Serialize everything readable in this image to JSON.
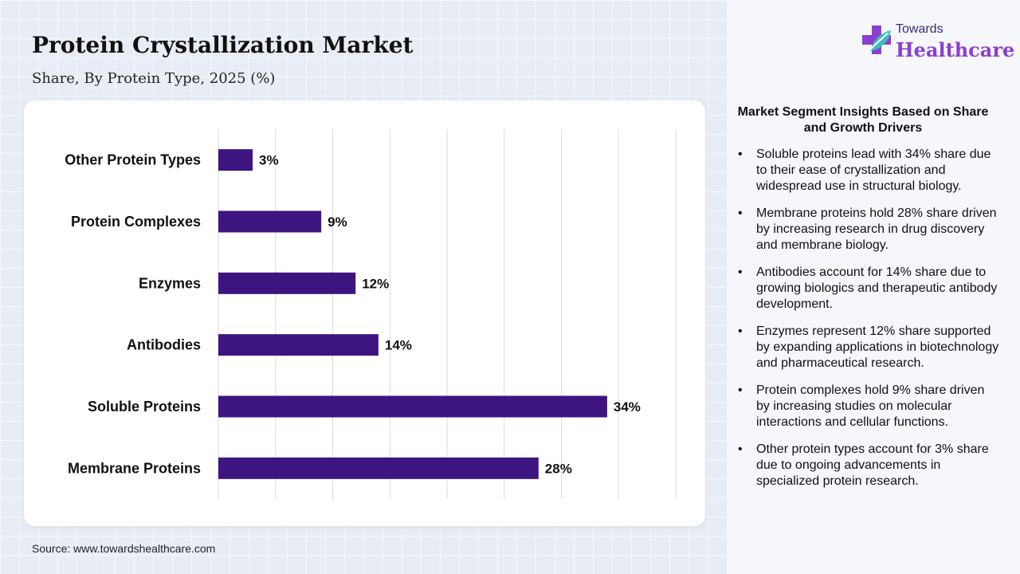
{
  "header": {
    "title": "Protein Crystallization Market",
    "subtitle": "Share, By Protein Type, 2025 (%)"
  },
  "brand": {
    "line1": "Towards",
    "line2": "Healthcare",
    "icon": "medical-cross-leaf-icon"
  },
  "colors": {
    "bar": "#3e1480",
    "grid": "#d9d9e3",
    "brand_purple": "#8a3fd0",
    "brand_teal": "#37c7b6"
  },
  "chart_data": {
    "type": "bar",
    "orientation": "horizontal",
    "categories": [
      "Other Protein Types",
      "Protein Complexes",
      "Enzymes",
      "Antibodies",
      "Soluble Proteins",
      "Membrane Proteins"
    ],
    "values": [
      3,
      9,
      12,
      14,
      34,
      28
    ],
    "data_labels": [
      "3%",
      "9%",
      "12%",
      "14%",
      "34%",
      "28%"
    ],
    "xlim": [
      0,
      40
    ],
    "grid": true,
    "legend": "none"
  },
  "insights": {
    "title": "Market Segment Insights Based on Share and Growth Drivers",
    "items": [
      "Soluble proteins lead with 34% share due to their ease of crystallization and widespread use in structural biology.",
      "Membrane proteins hold 28% share driven by increasing research in drug discovery and membrane biology.",
      "Antibodies account for 14% share due to growing biologics and therapeutic antibody development.",
      "Enzymes represent 12% share supported by expanding applications in biotechnology and pharmaceutical research.",
      "Protein complexes hold 9% share driven by increasing studies on molecular interactions and cellular functions.",
      "Other protein types account for 3% share due to ongoing advancements in specialized protein research."
    ]
  },
  "footer": {
    "source": "Source: www.towardshealthcare.com"
  }
}
